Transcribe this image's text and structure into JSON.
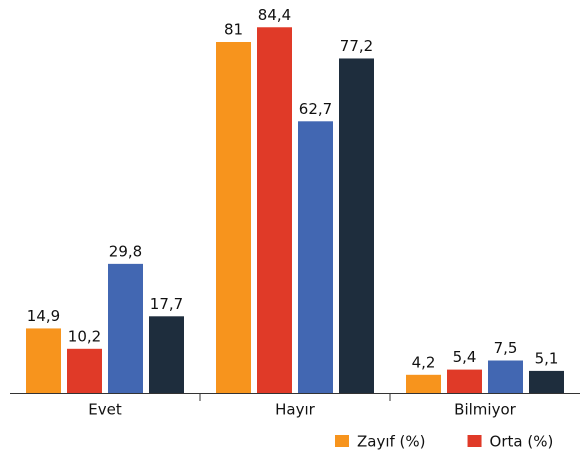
{
  "chart_data": {
    "type": "bar",
    "categories": [
      "Evet",
      "Hayır",
      "Bilmiyor"
    ],
    "series": [
      {
        "name": "Zayıf (%)",
        "color": "#f7941d",
        "values": [
          14.9,
          81,
          4.2
        ],
        "value_labels": [
          "14,9",
          "81",
          "4,2"
        ]
      },
      {
        "name": "Orta (%)",
        "color": "#e03a28",
        "values": [
          10.2,
          84.4,
          5.4
        ],
        "value_labels": [
          "10,2",
          "84,4",
          "5,4"
        ]
      },
      {
        "color": "#4267b2",
        "values": [
          29.8,
          62.7,
          7.5
        ],
        "value_labels": [
          "29,8",
          "62,7",
          "7,5"
        ]
      },
      {
        "color": "#1e2d3d",
        "values": [
          17.7,
          77.2,
          5.1
        ],
        "value_labels": [
          "17,7",
          "77,2",
          "5,1"
        ]
      }
    ],
    "ylim": [
      0,
      90
    ],
    "grid": false,
    "legend": "bottom-right"
  }
}
